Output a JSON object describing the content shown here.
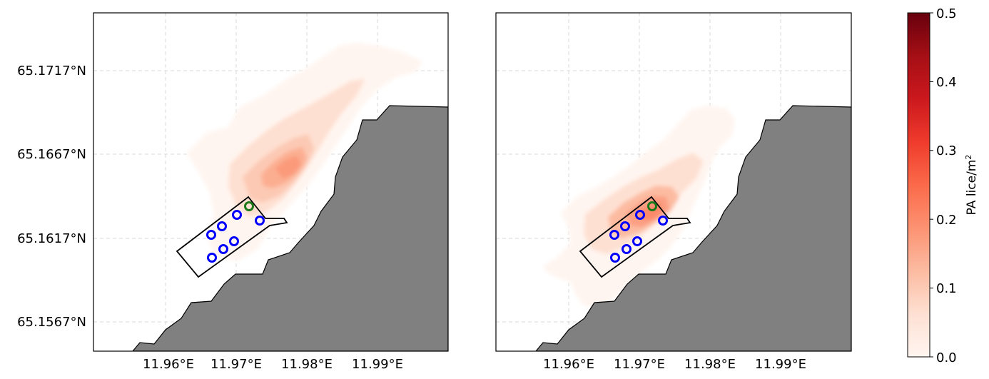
{
  "lat_labels": [
    "65.1717°N",
    "65.1667°N",
    "65.1617°N",
    "65.1567°N"
  ],
  "lon_labels": [
    "11.96°E",
    "11.97°E",
    "11.98°E",
    "11.99°E"
  ],
  "colorbar": {
    "label_main": "PA lice/m",
    "label_sup": "2",
    "ticks": [
      "0.0",
      "0.1",
      "0.2",
      "0.3",
      "0.4",
      "0.5"
    ],
    "min": 0.0,
    "max": 0.5,
    "colormap": "Reds",
    "low_color": "#fff5f0",
    "high_color": "#67000d"
  },
  "colors": {
    "land": "#808080",
    "grid": "#d9d9d9",
    "pen_outline": "#000000",
    "cage_marker": "#0000ff",
    "highlight_marker": "#1a7a1a"
  },
  "panels": [
    {
      "id": "left",
      "peak_density": 0.21,
      "cages": 8,
      "plume": "centered north-east of the farm, near 65.166°N 11.978°E"
    },
    {
      "id": "right",
      "peak_density": 0.26,
      "cages": 8,
      "plume": "centered over the north-east end of the farm, near 65.163°N 11.971°E"
    }
  ]
}
